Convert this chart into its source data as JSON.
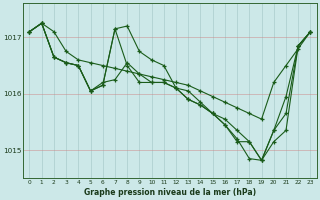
{
  "title": "Graphe pression niveau de la mer (hPa)",
  "bg_color": "#cce8e8",
  "grid_color": "#aacccc",
  "line_color": "#1a5c1a",
  "x_labels": [
    "0",
    "1",
    "2",
    "3",
    "4",
    "5",
    "6",
    "7",
    "8",
    "9",
    "10",
    "11",
    "12",
    "13",
    "14",
    "15",
    "16",
    "17",
    "18",
    "19",
    "20",
    "21",
    "22",
    "23"
  ],
  "ylim": [
    1014.5,
    1017.6
  ],
  "yticks": [
    1015,
    1016,
    1017
  ],
  "series": [
    [
      1017.1,
      1017.25,
      1017.1,
      1016.75,
      1016.6,
      1016.55,
      1016.5,
      1016.45,
      1016.4,
      1016.35,
      1016.3,
      1016.25,
      1016.2,
      1016.15,
      1016.05,
      1015.95,
      1015.85,
      1015.75,
      1015.65,
      1015.55,
      1016.2,
      1016.5,
      1016.8,
      1017.1
    ],
    [
      1017.1,
      1017.25,
      1016.65,
      1016.55,
      1016.5,
      1016.05,
      1016.15,
      1017.15,
      1017.2,
      1016.75,
      1016.6,
      1016.5,
      1016.1,
      1016.05,
      1015.85,
      1015.65,
      1015.45,
      1015.2,
      1014.85,
      1014.82,
      1015.35,
      1015.95,
      1016.85,
      1017.1
    ],
    [
      1017.1,
      1017.25,
      1016.65,
      1016.55,
      1016.5,
      1016.05,
      1016.15,
      1017.15,
      1016.5,
      1016.2,
      1016.2,
      1016.2,
      1016.1,
      1015.9,
      1015.8,
      1015.65,
      1015.55,
      1015.35,
      1015.15,
      1014.82,
      1015.35,
      1015.65,
      1016.85,
      1017.1
    ],
    [
      1017.1,
      1017.25,
      1016.65,
      1016.55,
      1016.5,
      1016.05,
      1016.2,
      1016.25,
      1016.55,
      1016.35,
      1016.2,
      1016.2,
      1016.1,
      1015.9,
      1015.8,
      1015.65,
      1015.45,
      1015.15,
      1015.15,
      1014.82,
      1015.15,
      1015.35,
      1016.85,
      1017.1
    ]
  ]
}
